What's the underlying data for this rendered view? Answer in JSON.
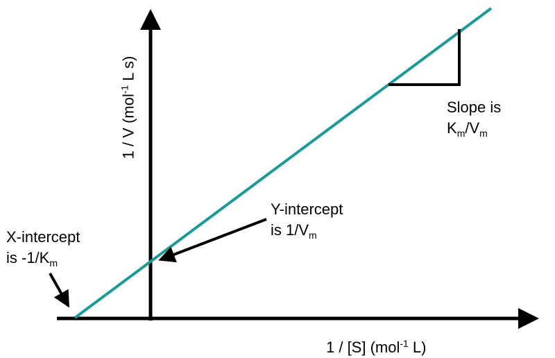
{
  "colors": {
    "line": "#1b9b97",
    "axis": "#000000"
  },
  "x_axis_label": {
    "main": "1 / [S] (mol",
    "sup": "-1",
    "tail": " L)"
  },
  "y_axis_label": {
    "main": "1 / V (mol",
    "sup": "-1",
    "tail": " L s)"
  },
  "slope_label": {
    "line1": "Slope is",
    "k": "K",
    "k_sub": "m",
    "slash": "/V",
    "v_sub": "m"
  },
  "y_intercept_label": {
    "line1": "Y-intercept",
    "line2": "is 1/V",
    "sub": "m"
  },
  "x_intercept_label": {
    "line1": "X-intercept",
    "line2": "is -1/K",
    "sub": "m"
  },
  "chart_data": {
    "type": "line",
    "title": "",
    "xlabel": "1 / [S] (mol-1 L)",
    "ylabel": "1 / V (mol-1 L s)",
    "annotations": [
      "Slope is Km/Vm",
      "Y-intercept is 1/Vm",
      "X-intercept is -1/Km"
    ]
  }
}
